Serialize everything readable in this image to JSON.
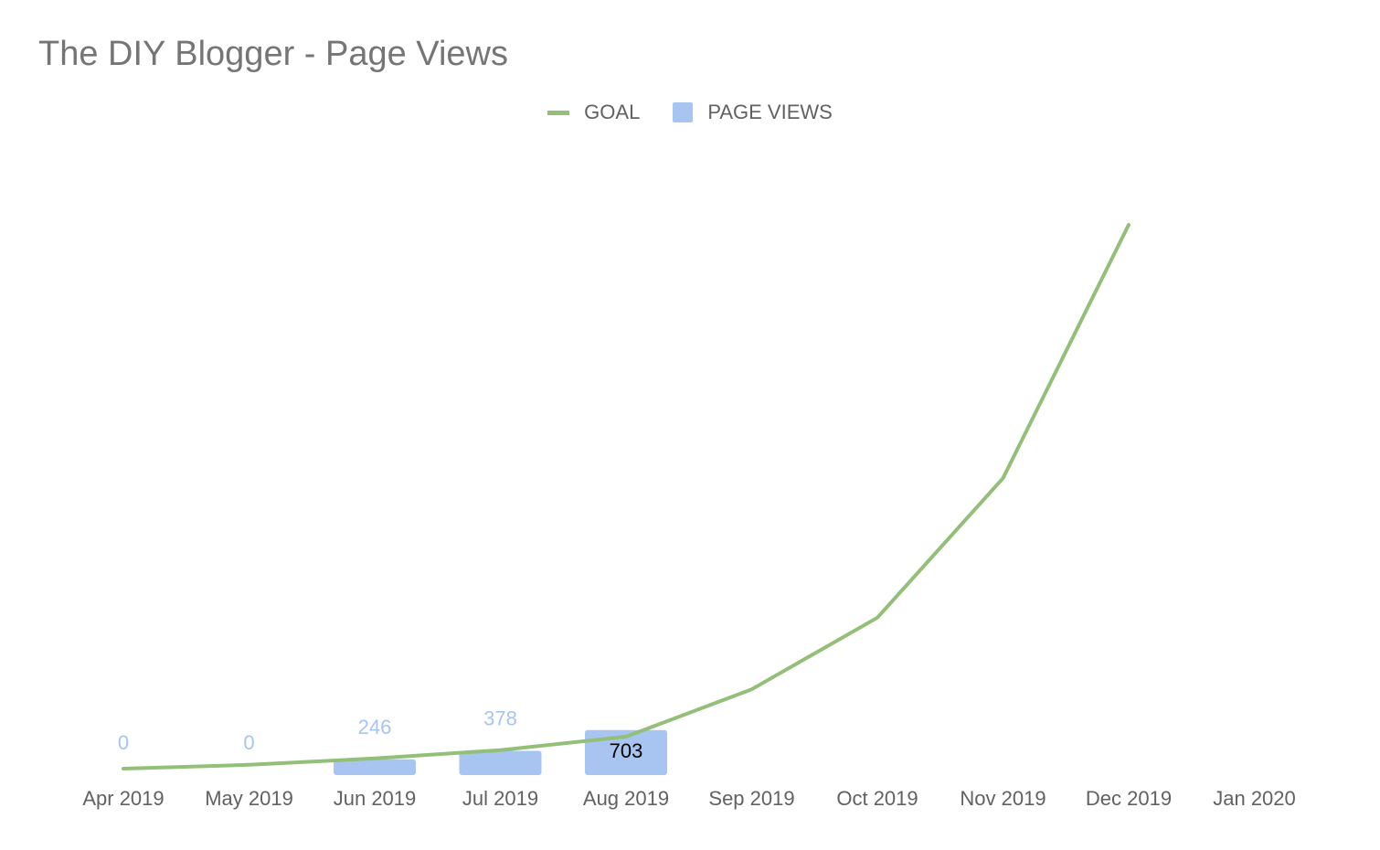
{
  "chart_data": {
    "type": "bar",
    "title": "The DIY Blogger - Page Views",
    "xlabel": "",
    "ylabel": "",
    "categories": [
      "Apr 2019",
      "May 2019",
      "Jun 2019",
      "Jul 2019",
      "Aug 2019",
      "Sep 2019",
      "Oct 2019",
      "Nov 2019",
      "Dec 2019",
      "Jan 2020"
    ],
    "ylim": [
      0,
      8000
    ],
    "grid": false,
    "legend_position": "top-center",
    "series": [
      {
        "name": "GOAL",
        "type": "line",
        "color": "#93bf79",
        "values": [
          100,
          160,
          260,
          390,
          600,
          1340,
          2460,
          4640,
          8600,
          null
        ]
      },
      {
        "name": "PAGE VIEWS",
        "type": "bar",
        "color": "#a8c4f0",
        "values": [
          0,
          0,
          246,
          378,
          703,
          null,
          null,
          null,
          null,
          null
        ],
        "data_labels": [
          "0",
          "0",
          "246",
          "378",
          "703",
          "",
          "",
          "",
          "",
          ""
        ]
      }
    ]
  }
}
